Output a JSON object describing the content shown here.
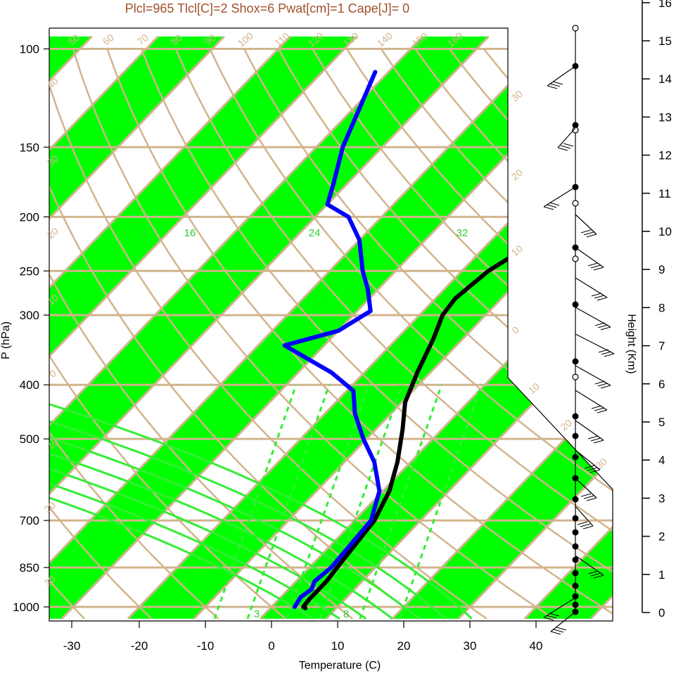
{
  "chart_data": {
    "type": "line",
    "title": "Plcl=965 Tlcl[C]=2 Shox=6 Pwat[cm]=1 Cape[J]= 0",
    "xlabel": "Temperature (C)",
    "ylabel": "P (hPa)",
    "height_axis_label": "Height (Km)",
    "x_ticks": [
      -30,
      -20,
      -10,
      0,
      10,
      20,
      30,
      40
    ],
    "pressure_ticks": [
      100,
      150,
      200,
      250,
      300,
      400,
      500,
      700,
      850,
      1000
    ],
    "height_ticks": [
      0,
      1,
      2,
      3,
      4,
      5,
      6,
      7,
      8,
      9,
      10,
      11,
      12,
      13,
      14,
      15,
      16
    ],
    "isotherm_labels": [
      "50",
      "60",
      "70",
      "80",
      "90",
      "100",
      "110",
      "120",
      "130",
      "140",
      "150",
      "160",
      "30",
      "20",
      "10",
      "0",
      "10",
      "20",
      "30",
      "40",
      "30",
      "20",
      "10",
      "0",
      "10",
      "20",
      "30"
    ],
    "mixing_ratio_labels": [
      "2",
      "16",
      "24",
      "32",
      "3",
      "8"
    ],
    "series": [
      {
        "role": "temperature",
        "color": "#000000",
        "points": [
          {
            "p": 1005,
            "t": 5.3
          },
          {
            "p": 1000,
            "t": 4.8
          },
          {
            "p": 970,
            "t": 4.6
          },
          {
            "p": 900,
            "t": 4.6
          },
          {
            "p": 850,
            "t": 4.2
          },
          {
            "p": 700,
            "t": 3.0
          },
          {
            "p": 620,
            "t": 1.0
          },
          {
            "p": 550,
            "t": -2.0
          },
          {
            "p": 480,
            "t": -6.0
          },
          {
            "p": 430,
            "t": -9.5
          },
          {
            "p": 380,
            "t": -12.0
          },
          {
            "p": 330,
            "t": -14.5
          },
          {
            "p": 300,
            "t": -16.5
          },
          {
            "p": 280,
            "t": -17.0
          },
          {
            "p": 250,
            "t": -16.0
          },
          {
            "p": 230,
            "t": -14.0
          },
          {
            "p": 210,
            "t": -10.0
          },
          {
            "p": 200,
            "t": -6.5
          },
          {
            "p": 180,
            "t": -3.5
          },
          {
            "p": 165,
            "t": -2.5
          },
          {
            "p": 150,
            "t": -3.0
          },
          {
            "p": 140,
            "t": -5.0
          },
          {
            "p": 110,
            "t": -13.0
          }
        ]
      },
      {
        "role": "dewpoint",
        "color": "#0000ff",
        "points": [
          {
            "p": 1000,
            "t": 3.5
          },
          {
            "p": 960,
            "t": 3.0
          },
          {
            "p": 930,
            "t": 3.5
          },
          {
            "p": 900,
            "t": 2.8
          },
          {
            "p": 850,
            "t": 3.3
          },
          {
            "p": 700,
            "t": 2.5
          },
          {
            "p": 620,
            "t": -0.5
          },
          {
            "p": 550,
            "t": -5.5
          },
          {
            "p": 500,
            "t": -10.5
          },
          {
            "p": 450,
            "t": -15.5
          },
          {
            "p": 410,
            "t": -19.0
          },
          {
            "p": 380,
            "t": -25.0
          },
          {
            "p": 340,
            "t": -36.0
          },
          {
            "p": 320,
            "t": -30.0
          },
          {
            "p": 295,
            "t": -28.0
          },
          {
            "p": 270,
            "t": -31.5
          },
          {
            "p": 250,
            "t": -35.0
          },
          {
            "p": 220,
            "t": -40.0
          },
          {
            "p": 200,
            "t": -45.0
          },
          {
            "p": 190,
            "t": -50.0
          },
          {
            "p": 175,
            "t": -52.0
          },
          {
            "p": 150,
            "t": -56.0
          },
          {
            "p": 110,
            "t": -62.0
          }
        ]
      }
    ],
    "grid": true,
    "colors": {
      "band": "#00ff00",
      "isotherm": "#d2b48c",
      "temperature": "#000000",
      "dewpoint": "#0000ff",
      "mixing_ratio": "#33ee33",
      "title": "#a0522d"
    }
  }
}
